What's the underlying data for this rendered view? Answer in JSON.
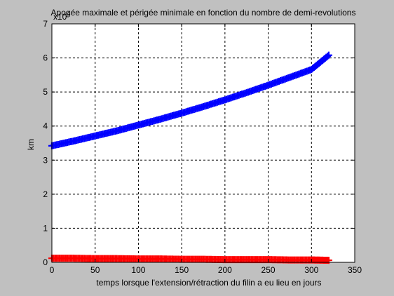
{
  "chart_data": {
    "type": "scatter",
    "title": "Apogée maximale et périgée minimale en fonction du nombre de demi-revolutions",
    "xlabel": "temps lorsque l'extension/rétraction du filin a eu lieu en jours",
    "ylabel": "km",
    "y_exponent_label": "x10",
    "y_exponent_power": "4",
    "y_scale_factor": 10000,
    "xlim": [
      0,
      350
    ],
    "ylim": [
      0,
      7
    ],
    "x_ticks": [
      "0",
      "50",
      "100",
      "150",
      "200",
      "250",
      "300",
      "350"
    ],
    "y_ticks": [
      "0",
      "1",
      "2",
      "3",
      "4",
      "5",
      "6",
      "7"
    ],
    "grid": true,
    "marker": "+",
    "series": [
      {
        "color": "#0000ff",
        "x": [
          0,
          25,
          50,
          75,
          100,
          125,
          150,
          175,
          200,
          225,
          250,
          275,
          300,
          320
        ],
        "y": [
          3.42,
          3.56,
          3.71,
          3.86,
          4.03,
          4.2,
          4.38,
          4.57,
          4.77,
          4.98,
          5.2,
          5.43,
          5.66,
          6.08
        ]
      },
      {
        "color": "#ff0000",
        "x": [
          0,
          25,
          50,
          75,
          100,
          125,
          150,
          175,
          200,
          225,
          250,
          275,
          300,
          320
        ],
        "y": [
          0.12,
          0.12,
          0.11,
          0.11,
          0.1,
          0.1,
          0.09,
          0.09,
          0.08,
          0.08,
          0.08,
          0.07,
          0.07,
          0.06
        ]
      }
    ]
  }
}
